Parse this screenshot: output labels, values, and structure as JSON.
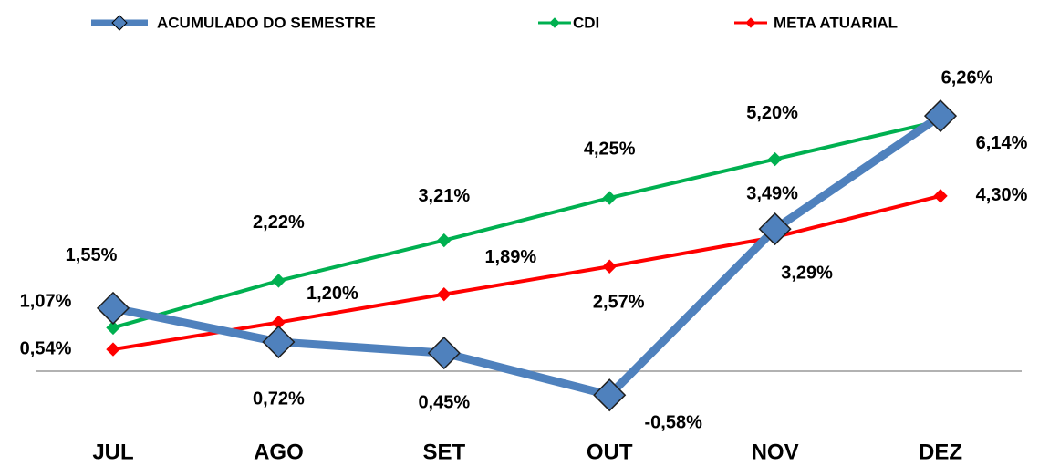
{
  "chart_data": {
    "type": "line",
    "categories": [
      "JUL",
      "AGO",
      "SET",
      "OUT",
      "NOV",
      "DEZ"
    ],
    "series": [
      {
        "name": "ACUMULADO DO SEMESTRE",
        "color": "#4f81bd",
        "values": [
          1.55,
          0.72,
          0.45,
          -0.58,
          3.49,
          6.26
        ],
        "value_labels": [
          "1,55%",
          "0,72%",
          "0,45%",
          "-0,58%",
          "3,49%",
          "6,26%"
        ]
      },
      {
        "name": "CDI",
        "color": "#00b050",
        "values": [
          1.07,
          2.22,
          3.21,
          4.25,
          5.2,
          6.14
        ],
        "value_labels": [
          "1,07%",
          "2,22%",
          "3,21%",
          "4,25%",
          "5,20%",
          "6,14%"
        ]
      },
      {
        "name": "META ATUARIAL",
        "color": "#ff0000",
        "values": [
          0.54,
          1.2,
          1.89,
          2.57,
          3.29,
          4.3
        ],
        "value_labels": [
          "0,54%",
          "1,20%",
          "1,89%",
          "2,57%",
          "3,29%",
          "4,30%"
        ]
      }
    ],
    "ylim": [
      -1,
      7
    ],
    "legend": "top"
  }
}
